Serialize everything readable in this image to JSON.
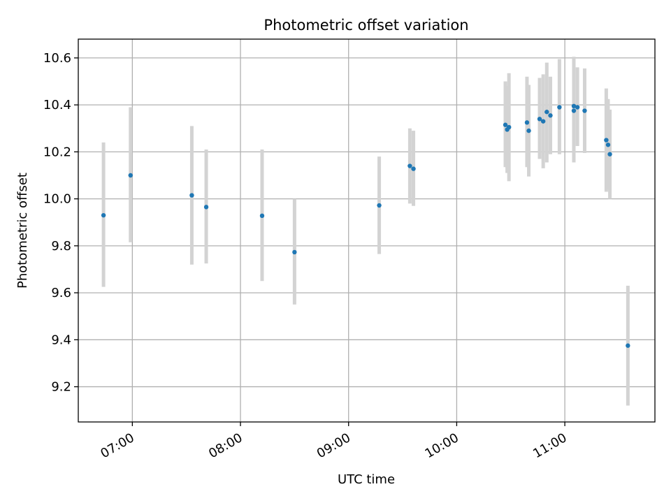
{
  "chart_data": {
    "type": "scatter",
    "title": "Photometric offset variation",
    "xlabel": "UTC time",
    "ylabel": "Photometric offset",
    "x_tick_labels": [
      "07:00",
      "08:00",
      "09:00",
      "10:00",
      "11:00"
    ],
    "y_tick_labels": [
      "9.2",
      "9.4",
      "9.6",
      "9.8",
      "10.0",
      "10.2",
      "10.4",
      "10.6"
    ],
    "xlim": [
      "06:30",
      "11:50"
    ],
    "ylim": [
      9.05,
      10.68
    ],
    "grid": true,
    "colors": {
      "point": "#1f77b4",
      "errorbar": "#d3d3d3",
      "grid": "#b0b0b0"
    },
    "points": [
      {
        "time": "06:44",
        "y": 9.93,
        "ylow": 9.625,
        "yhigh": 10.24
      },
      {
        "time": "06:59",
        "y": 10.1,
        "ylow": 9.815,
        "yhigh": 10.39
      },
      {
        "time": "07:33",
        "y": 10.015,
        "ylow": 9.72,
        "yhigh": 10.31
      },
      {
        "time": "07:41",
        "y": 9.965,
        "ylow": 9.725,
        "yhigh": 10.21
      },
      {
        "time": "08:12",
        "y": 9.928,
        "ylow": 9.65,
        "yhigh": 10.21
      },
      {
        "time": "08:30",
        "y": 9.773,
        "ylow": 9.55,
        "yhigh": 10.0
      },
      {
        "time": "09:17",
        "y": 9.972,
        "ylow": 9.765,
        "yhigh": 10.18
      },
      {
        "time": "09:34",
        "y": 10.14,
        "ylow": 9.98,
        "yhigh": 10.3
      },
      {
        "time": "09:36",
        "y": 10.128,
        "ylow": 9.97,
        "yhigh": 10.29
      },
      {
        "time": "10:27",
        "y": 10.315,
        "ylow": 10.135,
        "yhigh": 10.5
      },
      {
        "time": "10:28",
        "y": 10.295,
        "ylow": 10.11,
        "yhigh": 10.48
      },
      {
        "time": "10:29",
        "y": 10.305,
        "ylow": 10.075,
        "yhigh": 10.535
      },
      {
        "time": "10:39",
        "y": 10.325,
        "ylow": 10.135,
        "yhigh": 10.52
      },
      {
        "time": "10:40",
        "y": 10.29,
        "ylow": 10.095,
        "yhigh": 10.485
      },
      {
        "time": "10:46",
        "y": 10.34,
        "ylow": 10.17,
        "yhigh": 10.515
      },
      {
        "time": "10:48",
        "y": 10.33,
        "ylow": 10.13,
        "yhigh": 10.53
      },
      {
        "time": "10:50",
        "y": 10.37,
        "ylow": 10.155,
        "yhigh": 10.58
      },
      {
        "time": "10:52",
        "y": 10.355,
        "ylow": 10.19,
        "yhigh": 10.52
      },
      {
        "time": "10:57",
        "y": 10.39,
        "ylow": 10.19,
        "yhigh": 10.595
      },
      {
        "time": "11:05",
        "y": 10.375,
        "ylow": 10.155,
        "yhigh": 10.605
      },
      {
        "time": "11:05",
        "y": 10.395,
        "ylow": 10.18,
        "yhigh": 10.595
      },
      {
        "time": "11:07",
        "y": 10.39,
        "ylow": 10.225,
        "yhigh": 10.56
      },
      {
        "time": "11:11",
        "y": 10.375,
        "ylow": 10.195,
        "yhigh": 10.555
      },
      {
        "time": "11:23",
        "y": 10.25,
        "ylow": 10.03,
        "yhigh": 10.47
      },
      {
        "time": "11:24",
        "y": 10.23,
        "ylow": 10.04,
        "yhigh": 10.425
      },
      {
        "time": "11:25",
        "y": 10.19,
        "ylow": 10.0,
        "yhigh": 10.38
      },
      {
        "time": "11:35",
        "y": 9.375,
        "ylow": 9.12,
        "yhigh": 9.63
      }
    ]
  }
}
